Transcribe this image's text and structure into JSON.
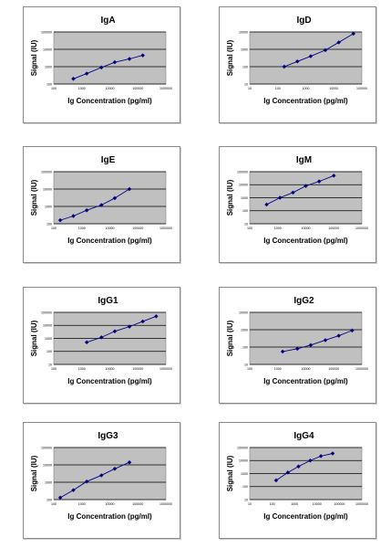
{
  "chart_data": [
    {
      "type": "line",
      "title": "IgA",
      "xlabel": "Ig Concentration (pg/ml)",
      "ylabel": "Signal (IU)",
      "xscale": "log",
      "yscale": "log",
      "xlim": [
        100,
        1000000
      ],
      "ylim": [
        100,
        100000
      ],
      "xticks": [
        "100",
        "1000",
        "10000",
        "100000",
        "1000000"
      ],
      "yticks": [
        "100",
        "1000",
        "10000",
        "100000"
      ],
      "grid": "horizontal",
      "legend": "none",
      "x": [
        500,
        1500,
        5000,
        15000,
        50000,
        150000
      ],
      "y": [
        200,
        400,
        900,
        1800,
        2800,
        4500
      ]
    },
    {
      "type": "line",
      "title": "IgD",
      "xlabel": "Ig Concentration (pg/ml)",
      "ylabel": "Signal (IU)",
      "xscale": "log",
      "yscale": "log",
      "xlim": [
        10,
        100000
      ],
      "ylim": [
        10,
        10000
      ],
      "xticks": [
        "10",
        "100",
        "1000",
        "10000",
        "100000"
      ],
      "yticks": [
        "10",
        "100",
        "1000",
        "10000"
      ],
      "grid": "horizontal",
      "legend": "none",
      "x": [
        170,
        500,
        1500,
        5000,
        15000,
        50000
      ],
      "y": [
        100,
        200,
        400,
        900,
        2500,
        8000
      ]
    },
    {
      "type": "line",
      "title": "IgE",
      "xlabel": "Ig Concentration (pg/ml)",
      "ylabel": "Signal (IU)",
      "xscale": "log",
      "yscale": "log",
      "xlim": [
        100,
        1000000
      ],
      "ylim": [
        100,
        100000
      ],
      "xticks": [
        "100",
        "1000",
        "10000",
        "100000",
        "1000000"
      ],
      "yticks": [
        "100",
        "1000",
        "10000",
        "100000"
      ],
      "grid": "horizontal",
      "legend": "none",
      "x": [
        170,
        500,
        1500,
        5000,
        15000,
        50000
      ],
      "y": [
        160,
        280,
        600,
        1200,
        3000,
        10000
      ]
    },
    {
      "type": "line",
      "title": "IgM",
      "xlabel": "Ig Concentration (pg/ml)",
      "ylabel": "Signal (IU)",
      "xscale": "log",
      "yscale": "log",
      "xlim": [
        100,
        1000000
      ],
      "ylim": [
        10,
        100000
      ],
      "xticks": [
        "100",
        "1000",
        "10000",
        "100000",
        "1000000"
      ],
      "yticks": [
        "10",
        "100",
        "1000",
        "10000",
        "100000"
      ],
      "grid": "horizontal",
      "legend": "none",
      "x": [
        400,
        1200,
        3500,
        10000,
        30000,
        100000
      ],
      "y": [
        300,
        1000,
        2500,
        8000,
        18000,
        50000
      ]
    },
    {
      "type": "line",
      "title": "IgG1",
      "xlabel": "Ig Concentration (pg/ml)",
      "ylabel": "Signal (IU)",
      "xscale": "log",
      "yscale": "log",
      "xlim": [
        100,
        1000000
      ],
      "ylim": [
        10,
        100000
      ],
      "xticks": [
        "100",
        "1000",
        "10000",
        "100000",
        "1000000"
      ],
      "yticks": [
        "10",
        "100",
        "1000",
        "10000",
        "100000"
      ],
      "grid": "horizontal",
      "legend": "none",
      "x": [
        1500,
        5000,
        15000,
        50000,
        150000,
        450000
      ],
      "y": [
        500,
        1200,
        3500,
        8000,
        20000,
        50000
      ]
    },
    {
      "type": "line",
      "title": "IgG2",
      "xlabel": "Ig Concentration (pg/ml)",
      "ylabel": "Signal (IU)",
      "xscale": "log",
      "yscale": "log",
      "xlim": [
        100,
        1000000
      ],
      "ylim": [
        10,
        10000
      ],
      "xticks": [
        "100",
        "1000",
        "10000",
        "100000",
        "1000000"
      ],
      "yticks": [
        "10",
        "100",
        "1000",
        "10000"
      ],
      "grid": "horizontal",
      "legend": "none",
      "x": [
        1500,
        5000,
        15000,
        50000,
        150000,
        450000
      ],
      "y": [
        55,
        80,
        130,
        250,
        450,
        900
      ]
    },
    {
      "type": "line",
      "title": "IgG3",
      "xlabel": "Ig Concentration (pg/ml)",
      "ylabel": "Signal (IU)",
      "xscale": "log",
      "yscale": "log",
      "xlim": [
        100,
        1000000
      ],
      "ylim": [
        100,
        100000
      ],
      "xticks": [
        "100",
        "1000",
        "10000",
        "100000",
        "1000000"
      ],
      "yticks": [
        "100",
        "1000",
        "10000",
        "100000"
      ],
      "grid": "horizontal",
      "legend": "none",
      "x": [
        170,
        500,
        1500,
        5000,
        15000,
        50000
      ],
      "y": [
        130,
        350,
        1100,
        2500,
        6000,
        14000
      ]
    },
    {
      "type": "line",
      "title": "IgG4",
      "xlabel": "Ig Concentration (pg/ml)",
      "ylabel": "Signal (IU)",
      "xscale": "log",
      "yscale": "log",
      "xlim": [
        10,
        1000000
      ],
      "ylim": [
        10,
        100000
      ],
      "xticks": [
        "10",
        "100",
        "1000",
        "10000",
        "100000",
        "1000000"
      ],
      "yticks": [
        "10",
        "100",
        "1000",
        "10000",
        "100000"
      ],
      "grid": "horizontal",
      "legend": "none",
      "x": [
        150,
        500,
        1500,
        5000,
        15000,
        50000
      ],
      "y": [
        300,
        1200,
        3500,
        10000,
        22000,
        35000
      ]
    }
  ]
}
